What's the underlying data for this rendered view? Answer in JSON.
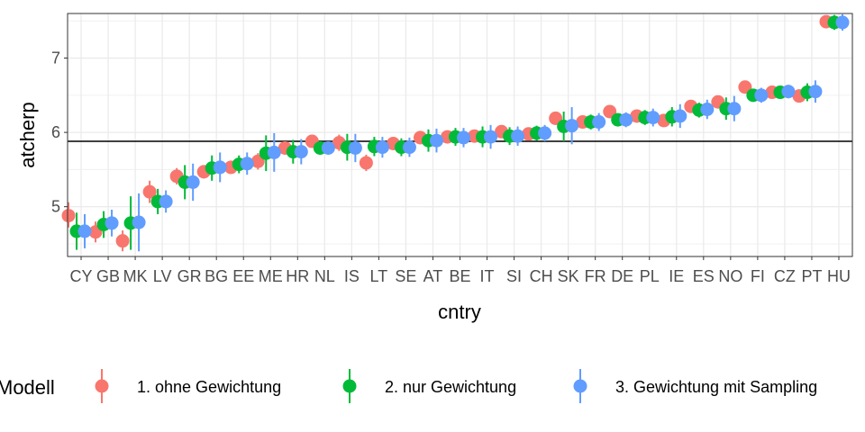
{
  "chart_data": {
    "type": "scatter",
    "xlabel": "cntry",
    "ylabel": "atcherp",
    "ylim": [
      4.33,
      7.6
    ],
    "yticks": [
      5,
      6,
      7
    ],
    "reference_line": 5.88,
    "grid": true,
    "legend_position": "bottom",
    "legend_title": "Modell",
    "categories": [
      "CY",
      "GB",
      "MK",
      "LV",
      "GR",
      "BG",
      "EE",
      "ME",
      "HR",
      "NL",
      "IS",
      "LT",
      "SE",
      "AT",
      "BE",
      "IT",
      "SI",
      "CH",
      "SK",
      "FR",
      "DE",
      "PL",
      "IE",
      "ES",
      "NO",
      "FI",
      "CZ",
      "PT",
      "HU"
    ],
    "series": [
      {
        "name": "1. ohne Gewichtung",
        "color": "#F8766D",
        "values": [
          4.88,
          4.66,
          4.54,
          5.2,
          5.41,
          5.47,
          5.53,
          5.61,
          5.79,
          5.88,
          5.86,
          5.59,
          5.85,
          5.93,
          5.94,
          5.95,
          6.01,
          5.98,
          6.19,
          6.14,
          6.28,
          6.22,
          6.16,
          6.35,
          6.41,
          6.61,
          6.54,
          6.49,
          7.49
        ],
        "lower": [
          4.72,
          4.52,
          4.4,
          5.05,
          5.3,
          5.38,
          5.45,
          5.5,
          5.7,
          5.82,
          5.75,
          5.48,
          5.77,
          5.84,
          5.87,
          5.87,
          5.93,
          5.92,
          6.1,
          6.08,
          6.21,
          6.16,
          6.08,
          6.3,
          6.33,
          6.55,
          6.49,
          6.42,
          7.44
        ],
        "upper": [
          5.06,
          4.8,
          4.68,
          5.35,
          5.52,
          5.56,
          5.61,
          5.72,
          5.88,
          5.94,
          5.97,
          5.7,
          5.93,
          6.02,
          6.01,
          6.03,
          6.09,
          6.04,
          6.28,
          6.2,
          6.35,
          6.28,
          6.24,
          6.4,
          6.49,
          6.67,
          6.59,
          6.56,
          7.54
        ]
      },
      {
        "name": "2. nur Gewichtung",
        "color": "#00BA38",
        "values": [
          4.67,
          4.76,
          4.78,
          5.07,
          5.33,
          5.52,
          5.57,
          5.72,
          5.74,
          5.79,
          5.8,
          5.81,
          5.8,
          5.89,
          5.94,
          5.94,
          5.95,
          5.99,
          6.08,
          6.14,
          6.17,
          6.2,
          6.21,
          6.3,
          6.32,
          6.5,
          6.54,
          6.54,
          7.48
        ],
        "lower": [
          4.42,
          4.58,
          4.42,
          4.9,
          5.1,
          5.35,
          5.45,
          5.48,
          5.58,
          5.7,
          5.62,
          5.68,
          5.68,
          5.74,
          5.82,
          5.8,
          5.83,
          5.89,
          5.88,
          6.04,
          6.09,
          6.1,
          6.08,
          6.2,
          6.17,
          6.42,
          6.47,
          6.42,
          7.38
        ],
        "upper": [
          4.92,
          4.94,
          5.14,
          5.24,
          5.56,
          5.69,
          5.69,
          5.96,
          5.9,
          5.88,
          5.98,
          5.94,
          5.92,
          6.04,
          6.06,
          6.08,
          6.07,
          6.09,
          6.28,
          6.24,
          6.25,
          6.3,
          6.34,
          6.4,
          6.47,
          6.58,
          6.61,
          6.66,
          7.58
        ]
      },
      {
        "name": "3. Gewichtung mit Sampling",
        "color": "#619CFF",
        "values": [
          4.67,
          4.78,
          4.79,
          5.07,
          5.33,
          5.53,
          5.58,
          5.73,
          5.74,
          5.79,
          5.79,
          5.8,
          5.8,
          5.89,
          5.93,
          5.94,
          5.95,
          5.99,
          6.09,
          6.14,
          6.17,
          6.2,
          6.22,
          6.31,
          6.32,
          6.5,
          6.55,
          6.55,
          7.48
        ],
        "lower": [
          4.44,
          4.6,
          4.4,
          4.92,
          5.08,
          5.33,
          5.43,
          5.47,
          5.57,
          5.7,
          5.6,
          5.66,
          5.67,
          5.73,
          5.8,
          5.78,
          5.82,
          5.88,
          5.84,
          6.02,
          6.07,
          6.08,
          6.06,
          6.18,
          6.15,
          6.4,
          6.46,
          6.4,
          7.37
        ],
        "upper": [
          4.9,
          4.96,
          5.18,
          5.22,
          5.58,
          5.73,
          5.73,
          5.99,
          5.91,
          5.88,
          5.98,
          5.94,
          5.93,
          6.05,
          6.06,
          6.1,
          6.08,
          6.1,
          6.34,
          6.26,
          6.27,
          6.32,
          6.38,
          6.44,
          6.49,
          6.6,
          6.64,
          6.7,
          7.59
        ]
      }
    ]
  }
}
